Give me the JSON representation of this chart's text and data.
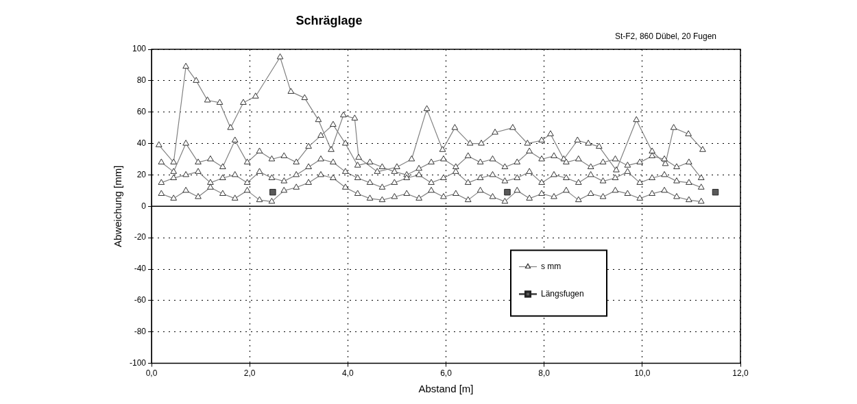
{
  "chart_data": {
    "type": "line",
    "title": "Schräglage",
    "subtitle": "St-F2, 860 Dübel, 20 Fugen",
    "xlabel": "Abstand [m]",
    "ylabel": "Abweichung [mm]",
    "x": [
      0.2,
      0.45,
      0.7,
      0.95,
      1.2,
      1.45,
      1.7,
      1.95,
      2.2,
      2.45,
      2.7,
      2.95,
      3.2,
      3.45,
      3.7,
      3.95,
      4.2,
      4.45,
      4.7,
      4.95,
      5.2,
      5.45,
      5.7,
      5.95,
      6.2,
      6.45,
      6.7,
      6.95,
      7.2,
      7.45,
      7.7,
      7.95,
      8.2,
      8.45,
      8.7,
      8.95,
      9.2,
      9.45,
      9.7,
      9.95,
      10.2,
      10.45,
      10.7,
      10.95,
      11.2
    ],
    "series": [
      {
        "name": "s mm",
        "color": "#808080",
        "x": [
          0.15,
          0.45,
          0.7,
          0.91,
          1.14,
          1.39,
          1.61,
          1.87,
          2.12,
          2.62,
          2.84,
          3.12,
          3.4,
          3.66,
          3.91,
          4.14,
          4.22,
          4.6,
          5.0,
          5.3,
          5.61,
          5.93,
          6.18,
          6.49,
          6.72,
          7.0,
          7.36,
          7.66,
          7.95,
          8.13,
          8.4,
          8.68,
          8.9,
          9.12,
          9.47,
          9.88,
          10.2,
          10.47,
          10.64,
          10.94,
          11.23
        ],
        "values": [
          39,
          28,
          89,
          80,
          67.5,
          66,
          50,
          66,
          70,
          95,
          73,
          69,
          55,
          36,
          58,
          56,
          31,
          22,
          25,
          30,
          62,
          36,
          50,
          40,
          40,
          47,
          50,
          40,
          42,
          46,
          30,
          42,
          40,
          38,
          23,
          55,
          35,
          27,
          50,
          46,
          36
        ]
      },
      {
        "color": "#808080",
        "values": [
          28,
          22,
          40,
          28,
          30,
          25,
          42,
          28,
          35,
          30,
          32,
          28,
          38,
          45,
          52,
          40,
          26,
          28,
          25,
          22,
          20,
          24,
          28,
          30,
          25,
          32,
          28,
          30,
          25,
          28,
          35,
          30,
          32,
          28,
          30,
          25,
          28,
          30,
          26,
          28,
          32,
          30,
          25,
          28,
          18
        ]
      },
      {
        "color": "#808080",
        "values": [
          15,
          18,
          20,
          22,
          15,
          18,
          20,
          15,
          22,
          18,
          16,
          20,
          25,
          30,
          28,
          22,
          18,
          15,
          12,
          15,
          18,
          20,
          15,
          18,
          22,
          15,
          18,
          20,
          16,
          18,
          22,
          15,
          20,
          18,
          15,
          20,
          16,
          18,
          22,
          15,
          18,
          20,
          16,
          15,
          12
        ]
      },
      {
        "color": "#808080",
        "values": [
          8,
          5,
          10,
          6,
          12,
          8,
          5,
          10,
          4,
          3,
          10,
          12,
          15,
          20,
          18,
          12,
          8,
          5,
          4,
          6,
          8,
          5,
          10,
          6,
          8,
          4,
          10,
          6,
          3,
          10,
          5,
          8,
          6,
          10,
          4,
          8,
          6,
          10,
          8,
          5,
          8,
          10,
          6,
          4,
          3
        ]
      },
      {
        "name": "Längsfugen",
        "type": "scatter",
        "marker": "square",
        "color": "#595959",
        "x": [
          2.47,
          7.25,
          11.49
        ],
        "values": [
          9,
          9,
          9
        ]
      }
    ],
    "marker": "triangle",
    "xlim": [
      0,
      12
    ],
    "xticks": [
      {
        "value": 0,
        "label": "0,0"
      },
      {
        "value": 2,
        "label": "2,0"
      },
      {
        "value": 4,
        "label": "4,0"
      },
      {
        "value": 6,
        "label": "6,0"
      },
      {
        "value": 8,
        "label": "8,0"
      },
      {
        "value": 10,
        "label": "10,0"
      },
      {
        "value": 12,
        "label": "12,0"
      }
    ],
    "ylim": [
      -100,
      100
    ],
    "yticks": [
      -100,
      -80,
      -60,
      -40,
      -20,
      0,
      20,
      40,
      60,
      80,
      100
    ],
    "grid": true,
    "legend": "bottom"
  }
}
